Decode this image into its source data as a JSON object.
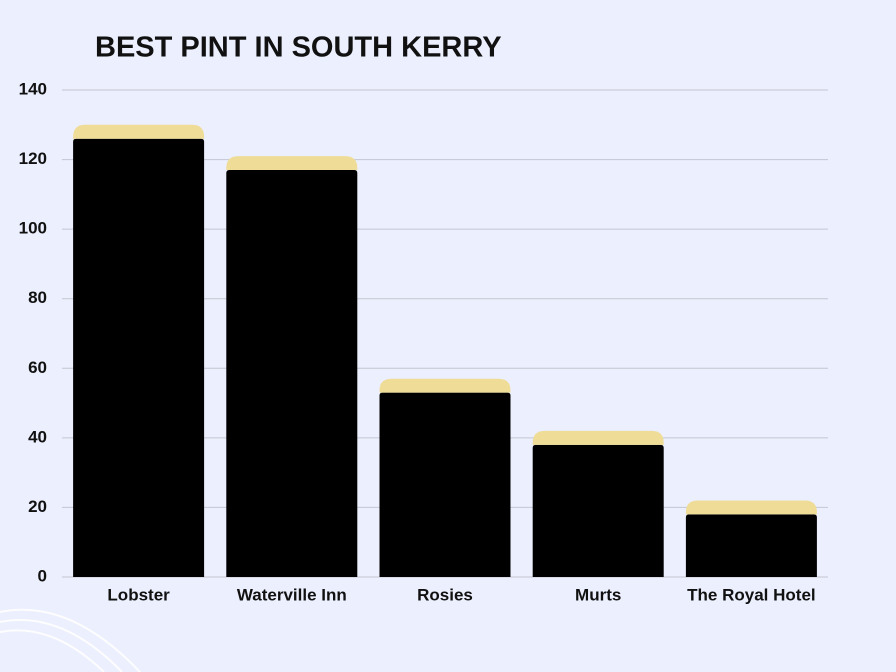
{
  "chart_data": {
    "type": "stacked_bar",
    "title": "BEST PINT IN SOUTH KERRY",
    "categories": [
      "Lobster",
      "Waterville Inn",
      "Rosies",
      "Murts",
      "The Royal Hotel"
    ],
    "series": [
      {
        "color": "#000000",
        "values": [
          126,
          117,
          53,
          38,
          18
        ]
      },
      {
        "color": "#efdc96",
        "values": [
          4,
          4,
          4,
          4,
          4
        ]
      }
    ],
    "ylim": [
      0,
      140
    ],
    "yticks": [
      0,
      20,
      40,
      60,
      80,
      100,
      120,
      140
    ],
    "grid": true
  }
}
